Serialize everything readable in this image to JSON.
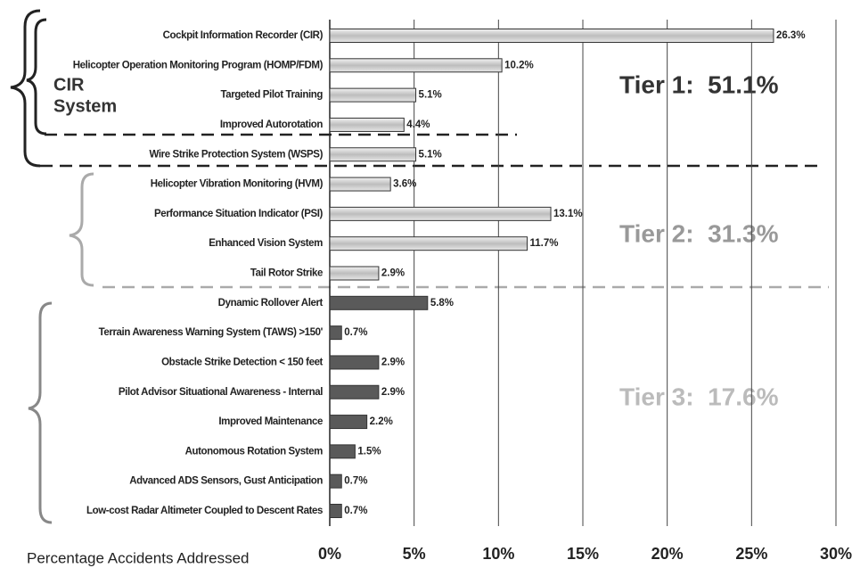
{
  "chart_data": {
    "type": "hbar",
    "x_label": "Percentage Accidents Addressed",
    "categories": [
      "Cockpit Information Recorder (CIR)",
      "Helicopter Operation Monitoring Program (HOMP/FDM)",
      "Targeted Pilot Training",
      "Improved Autorotation",
      "Wire Strike Protection System (WSPS)",
      "Helicopter Vibration Monitoring (HVM)",
      "Performance Situation Indicator (PSI)",
      "Enhanced Vision System",
      "Tail Rotor Strike",
      "Dynamic Rollover Alert",
      "Terrain Awareness Warning System (TAWS) >150'",
      "Obstacle Strike Detection < 150 feet",
      "Pilot Advisor Situational Awareness - Internal",
      "Improved Maintenance",
      "Autonomous Rotation System",
      "Advanced ADS Sensors, Gust Anticipation",
      "Low-cost Radar Altimeter Coupled to Descent Rates"
    ],
    "values": [
      26.3,
      10.2,
      5.1,
      4.4,
      5.1,
      3.6,
      13.1,
      11.7,
      2.9,
      5.8,
      0.7,
      2.9,
      2.9,
      2.2,
      1.5,
      0.7,
      0.7
    ],
    "value_labels": [
      "26.3%",
      "10.2%",
      "5.1%",
      "4.4%",
      "5.1%",
      "3.6%",
      "13.1%",
      "11.7%",
      "2.9%",
      "5.8%",
      "0.7%",
      "2.9%",
      "2.9%",
      "2.2%",
      "1.5%",
      "0.7%",
      "0.7%"
    ],
    "colors": [
      "#cfcfcf",
      "#cfcfcf",
      "#cfcfcf",
      "#cfcfcf",
      "#cfcfcf",
      "#cfcfcf",
      "#cfcfcf",
      "#cfcfcf",
      "#cfcfcf",
      "#5a5a5a",
      "#5a5a5a",
      "#5a5a5a",
      "#5a5a5a",
      "#5a5a5a",
      "#5a5a5a",
      "#5a5a5a",
      "#5a5a5a"
    ],
    "xlim": [
      0,
      30
    ],
    "xticks": [
      {
        "value": 0,
        "label": "0%"
      },
      {
        "value": 5,
        "label": "5%"
      },
      {
        "value": 10,
        "label": "10%"
      },
      {
        "value": 15,
        "label": "15%"
      },
      {
        "value": 20,
        "label": "20%"
      },
      {
        "value": 25,
        "label": "25%"
      },
      {
        "value": 30,
        "label": "30%"
      }
    ],
    "grid": true,
    "annotations": [
      "CIR",
      "System",
      "Tier 1:  51.1%",
      "Tier 2:  31.3%",
      "Tier 3:  17.6%"
    ]
  }
}
